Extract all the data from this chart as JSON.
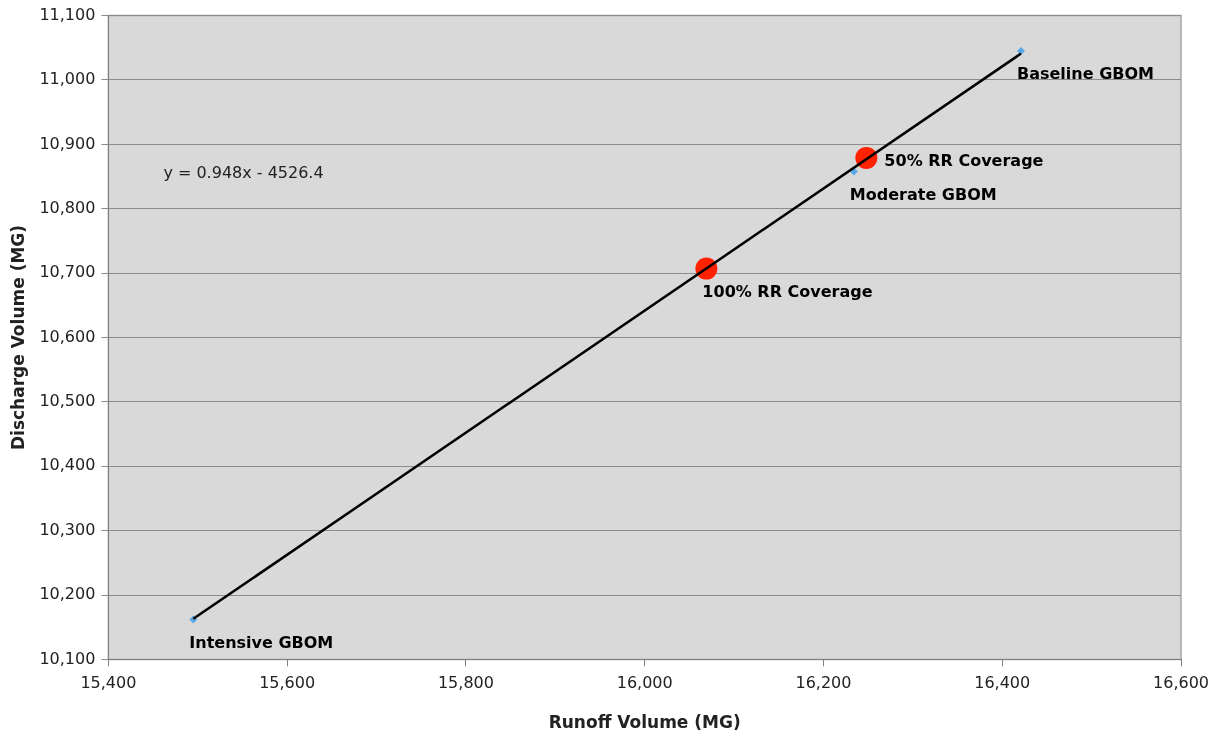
{
  "chart_data": {
    "type": "scatter",
    "xlabel": "Runoff Volume (MG)",
    "ylabel": "Discharge Volume (MG)",
    "series": [
      {
        "type": "line",
        "color": "#000000",
        "marker": "none",
        "x": [
          15495,
          16421
        ],
        "values": [
          10163,
          11041
        ]
      },
      {
        "color": "#5aa9e6",
        "marker": "diamond",
        "x": [
          16421,
          16234,
          15495
        ],
        "values": [
          11045,
          10858,
          10162
        ]
      },
      {
        "color": "#ff2200",
        "marker": "circle",
        "x": [
          16248,
          16069
        ],
        "values": [
          10879,
          10707
        ]
      }
    ],
    "xlim": [
      15400,
      16600
    ],
    "xticks": [
      {
        "value": 15400,
        "label": "15,400"
      },
      {
        "value": 15600,
        "label": "15,600"
      },
      {
        "value": 15800,
        "label": "15,800"
      },
      {
        "value": 16000,
        "label": "16,000"
      },
      {
        "value": 16200,
        "label": "16,200"
      },
      {
        "value": 16400,
        "label": "16,400"
      },
      {
        "value": 16600,
        "label": "16,600"
      }
    ],
    "ylim": [
      10100,
      11100
    ],
    "yticks": [
      {
        "value": 10100,
        "label": "10,100"
      },
      {
        "value": 10200,
        "label": "10,200"
      },
      {
        "value": 10300,
        "label": "10,300"
      },
      {
        "value": 10400,
        "label": "10,400"
      },
      {
        "value": 10500,
        "label": "10,500"
      },
      {
        "value": 10600,
        "label": "10,600"
      },
      {
        "value": 10700,
        "label": "10,700"
      },
      {
        "value": 10800,
        "label": "10,800"
      },
      {
        "value": 10900,
        "label": "10,900"
      },
      {
        "value": 11000,
        "label": "11,000"
      },
      {
        "value": 11100,
        "label": "11,100"
      }
    ],
    "grid": "y",
    "legend": false,
    "annotations": [
      "y = 0.948x - 4526.4",
      {
        "text": "Baseline GBOM",
        "x": 16421,
        "y": 11045
      },
      {
        "text": "Moderate GBOM",
        "x": 16234,
        "y": 10858
      },
      {
        "text": "50% RR Coverage",
        "x": 16248,
        "y": 10879
      },
      {
        "text": "100% RR Coverage",
        "x": 16069,
        "y": 10707
      },
      {
        "text": "Intensive GBOM",
        "x": 15495,
        "y": 10162
      }
    ]
  }
}
